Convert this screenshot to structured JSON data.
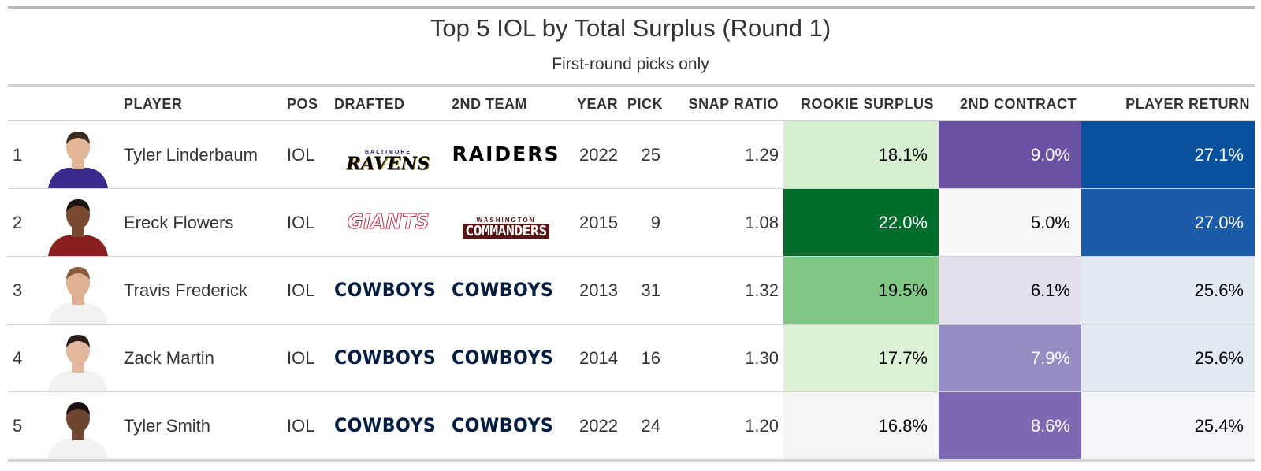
{
  "table": {
    "title": "Top 5 IOL by Total Surplus (Round 1)",
    "subtitle": "First-round picks only",
    "columns": {
      "rank": "",
      "headshot": "",
      "player": "PLAYER",
      "pos": "POS",
      "drafted": "DRAFTED",
      "second_team": "2ND TEAM",
      "year": "YEAR",
      "pick": "PICK",
      "snap_ratio": "SNAP RATIO",
      "rookie_surplus": "ROOKIE SURPLUS",
      "second_contract": "2ND CONTRACT",
      "player_return": "PLAYER RETURN"
    },
    "rows": [
      {
        "rank": "1",
        "player": "Tyler Linderbaum",
        "pos": "IOL",
        "drafted": {
          "icon": "ravens-logo",
          "text": "RAVENS",
          "super": "BALTIMORE"
        },
        "second_team": {
          "icon": "raiders-logo",
          "text": "RAIDERS"
        },
        "year": "2022",
        "pick": "25",
        "snap_ratio": "1.29",
        "rookie_surplus": "18.1%",
        "second_contract": "9.0%",
        "player_return": "27.1%",
        "rookie_surplus_color": "#d6efd0",
        "rookie_surplus_text_color": "#000000",
        "second_contract_color": "#6a51a3",
        "second_contract_text_color": "#ffffff",
        "player_return_color": "#08519c",
        "player_return_text_color": "#ffffff",
        "headshot_jersey_color": "#3a2a8c",
        "headshot_skin_color": "#e2b596",
        "headshot_hair_color": "#3b2a1f"
      },
      {
        "rank": "2",
        "player": "Ereck Flowers",
        "pos": "IOL",
        "drafted": {
          "icon": "giants-logo",
          "text": "GIANTS"
        },
        "second_team": {
          "icon": "commanders-logo",
          "text": "COMMANDERS",
          "super": "WASHINGTON"
        },
        "year": "2015",
        "pick": "9",
        "snap_ratio": "1.08",
        "rookie_surplus": "22.0%",
        "second_contract": "5.0%",
        "player_return": "27.0%",
        "rookie_surplus_color": "#006d2c",
        "rookie_surplus_text_color": "#ffffff",
        "second_contract_color": "#f7f7f7",
        "second_contract_text_color": "#000000",
        "player_return_color": "#1c5ba8",
        "player_return_text_color": "#ffffff",
        "headshot_jersey_color": "#8a1f1f",
        "headshot_skin_color": "#7a4a30",
        "headshot_hair_color": "#1c1410"
      },
      {
        "rank": "3",
        "player": "Travis Frederick",
        "pos": "IOL",
        "drafted": {
          "icon": "cowboys-logo",
          "text": "COWBOYS"
        },
        "second_team": {
          "icon": "cowboys-logo",
          "text": "COWBOYS"
        },
        "year": "2013",
        "pick": "31",
        "snap_ratio": "1.32",
        "rookie_surplus": "19.5%",
        "second_contract": "6.1%",
        "player_return": "25.6%",
        "rookie_surplus_color": "#80c785",
        "rookie_surplus_text_color": "#000000",
        "second_contract_color": "#e2e0ed",
        "second_contract_text_color": "#000000",
        "player_return_color": "#e3e9f3",
        "player_return_text_color": "#000000",
        "headshot_jersey_color": "#f2f2f2",
        "headshot_skin_color": "#e0b093",
        "headshot_hair_color": "#8a5a3c"
      },
      {
        "rank": "4",
        "player": "Zack Martin",
        "pos": "IOL",
        "drafted": {
          "icon": "cowboys-logo",
          "text": "COWBOYS"
        },
        "second_team": {
          "icon": "cowboys-logo",
          "text": "COWBOYS"
        },
        "year": "2014",
        "pick": "16",
        "snap_ratio": "1.30",
        "rookie_surplus": "17.7%",
        "second_contract": "7.9%",
        "player_return": "25.6%",
        "rookie_surplus_color": "#dcf1d6",
        "rookie_surplus_text_color": "#000000",
        "second_contract_color": "#958cc2",
        "second_contract_text_color": "#ffffff",
        "player_return_color": "#e3e9f3",
        "player_return_text_color": "#000000",
        "headshot_jersey_color": "#f2f2f2",
        "headshot_skin_color": "#e3b79c",
        "headshot_hair_color": "#2a1d17"
      },
      {
        "rank": "5",
        "player": "Tyler Smith",
        "pos": "IOL",
        "drafted": {
          "icon": "cowboys-logo",
          "text": "COWBOYS"
        },
        "second_team": {
          "icon": "cowboys-logo",
          "text": "COWBOYS"
        },
        "year": "2022",
        "pick": "24",
        "snap_ratio": "1.20",
        "rookie_surplus": "16.8%",
        "second_contract": "8.6%",
        "player_return": "25.4%",
        "rookie_surplus_color": "#f5f5f5",
        "rookie_surplus_text_color": "#000000",
        "second_contract_color": "#7d68b1",
        "second_contract_text_color": "#ffffff",
        "player_return_color": "#f4f6fa",
        "player_return_text_color": "#000000",
        "headshot_jersey_color": "#f2f2f2",
        "headshot_skin_color": "#6e4530",
        "headshot_hair_color": "#1a1210"
      }
    ]
  }
}
